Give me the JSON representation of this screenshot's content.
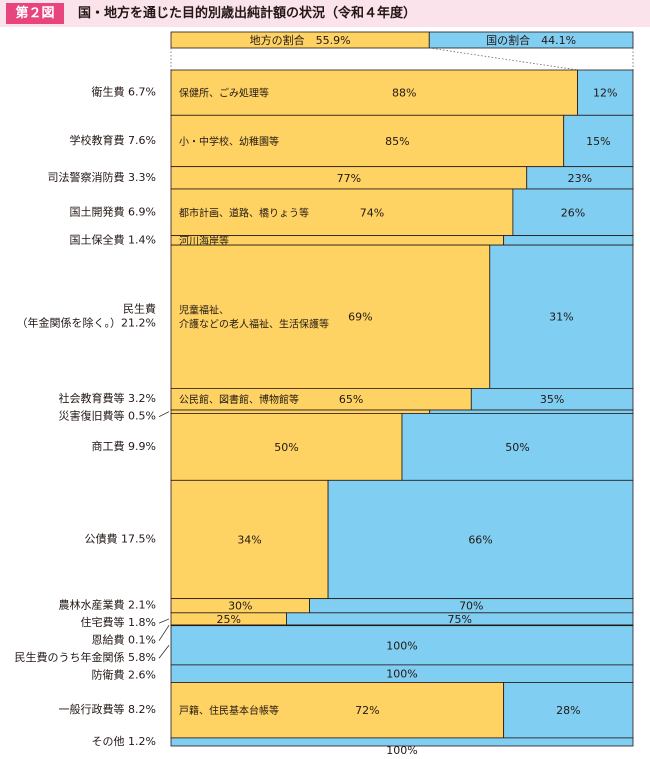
{
  "header": {
    "fig_label": "第２図",
    "title": "国・地方を通じた目的別歳出純計額の状況（令和４年度）"
  },
  "colors": {
    "local": "#fed363",
    "national": "#80cef2",
    "border": "#231815",
    "header_bg": "#fbe3ec",
    "fig_label_bg": "#e8457f"
  },
  "chart_data": {
    "type": "bar",
    "subtype": "marimekko-100-percent-stacked",
    "summary": [
      {
        "label": "地方の割合",
        "value": "55.9%"
      },
      {
        "label": "国の割合",
        "value": "44.1%"
      }
    ],
    "rows": [
      {
        "name": "衛生費",
        "share": "6.7%",
        "local": 88,
        "national": 12,
        "note": "保健所、ごみ処理等",
        "local_label": "88%",
        "national_label": "12%"
      },
      {
        "name": "学校教育費",
        "share": "7.6%",
        "local": 85,
        "national": 15,
        "note": "小・中学校、幼稚園等",
        "local_label": "85%",
        "national_label": "15%"
      },
      {
        "name": "司法警察消防費",
        "share": "3.3%",
        "local": 77,
        "national": 23,
        "note": "",
        "local_label": "77%",
        "national_label": "23%"
      },
      {
        "name": "国土開発費",
        "share": "6.9%",
        "local": 74,
        "national": 26,
        "note": "都市計画、道路、橋りょう等",
        "local_label": "74%",
        "national_label": "26%"
      },
      {
        "name": "国土保全費",
        "share": "1.4%",
        "local": 72,
        "national": 28,
        "note": "河川海岸等",
        "local_label": "72%",
        "national_label": "28%"
      },
      {
        "name": "民生費",
        "name2": "（年金関係を除く。）",
        "share": "21.2%",
        "local": 69,
        "national": 31,
        "note": "児童福祉、",
        "note2": "介護などの老人福祉、生活保護等",
        "local_label": "69%",
        "national_label": "31%"
      },
      {
        "name": "社会教育費等",
        "share": "3.2%",
        "local": 65,
        "national": 35,
        "note": "公民館、図書館、博物館等",
        "local_label": "65%",
        "national_label": "35%"
      },
      {
        "name": "災害復旧費等",
        "share": "0.5%",
        "local": 56,
        "national": 44,
        "note": "",
        "local_label": "56%",
        "national_label": "44%"
      },
      {
        "name": "商工費",
        "share": "9.9%",
        "local": 50,
        "national": 50,
        "note": "",
        "local_label": "50%",
        "national_label": "50%"
      },
      {
        "name": "公債費",
        "share": "17.5%",
        "local": 34,
        "national": 66,
        "note": "",
        "local_label": "34%",
        "national_label": "66%"
      },
      {
        "name": "農林水産業費",
        "share": "2.1%",
        "local": 30,
        "national": 70,
        "note": "",
        "local_label": "30%",
        "national_label": "70%"
      },
      {
        "name": "住宅費等",
        "share": "1.8%",
        "local": 25,
        "national": 75,
        "note": "",
        "local_label": "25%",
        "national_label": "75%"
      },
      {
        "name": "恩給費",
        "share": "0.1%",
        "local": 4,
        "national": 96,
        "note": "",
        "local_label": "4%",
        "national_label": "96%"
      },
      {
        "name": "民生費のうち年金関係",
        "share": "5.8%",
        "local": 0,
        "national": 100,
        "note": "",
        "local_label": "",
        "national_label": "100%"
      },
      {
        "name": "防衛費",
        "share": "2.6%",
        "local": 0,
        "national": 100,
        "note": "",
        "local_label": "",
        "national_label": "100%"
      },
      {
        "name": "一般行政費等",
        "share": "8.2%",
        "local": 72,
        "national": 28,
        "note": "戸籍、住民基本台帳等",
        "local_label": "72%",
        "national_label": "28%"
      },
      {
        "name": "その他",
        "share": "1.2%",
        "local": 0,
        "national": 100,
        "note": "",
        "local_label": "",
        "national_label": "100%"
      }
    ]
  }
}
